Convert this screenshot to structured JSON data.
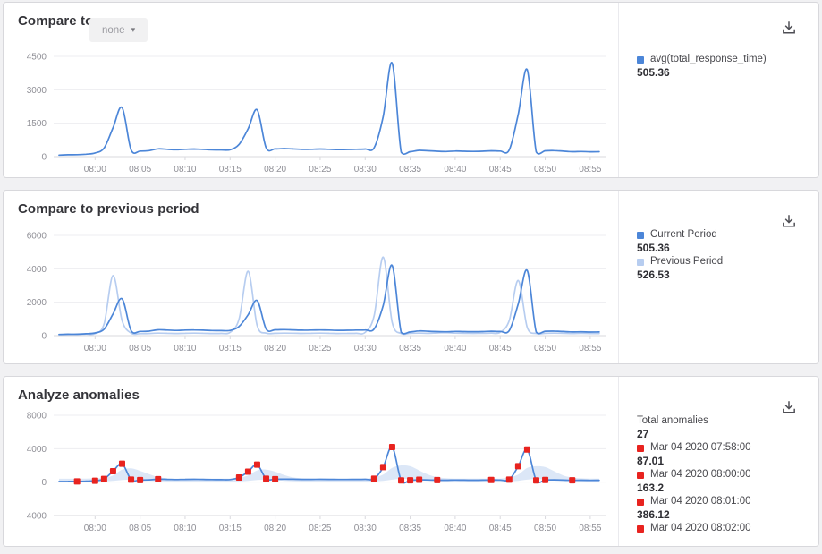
{
  "colors": {
    "accent_blue": "#4c86d8",
    "light_blue": "#b7cdf0",
    "anomaly_red": "#e8231f",
    "band_blue": "#c9daf3",
    "grid": "#ededf0",
    "axis_line": "#d9d9de",
    "axis_text": "#8f8f96",
    "page_bg": "#f1f1f3",
    "panel_bg": "#ffffff",
    "panel_border": "#d8d8dc"
  },
  "panels": [
    {
      "title": "Compare to",
      "dropdown": {
        "selected": "none"
      },
      "legend": [
        {
          "color": "#4c86d8",
          "label": "avg(total_response_time)",
          "value": "505.36"
        }
      ]
    },
    {
      "title": "Compare to previous period",
      "legend": [
        {
          "color": "#4c86d8",
          "label": "Current Period",
          "value": "505.36"
        },
        {
          "color": "#b7cdf0",
          "label": "Previous Period",
          "value": "526.53"
        }
      ]
    },
    {
      "title": "Analyze anomalies",
      "legend": [
        {
          "color": null,
          "label": "Total anomalies",
          "value": "27"
        },
        {
          "color": "#e8231f",
          "label": "Mar 04 2020 07:58:00",
          "value": "87.01"
        },
        {
          "color": "#e8231f",
          "label": "Mar 04 2020 08:00:00",
          "value": "163.2"
        },
        {
          "color": "#e8231f",
          "label": "Mar 04 2020 08:01:00",
          "value": "386.12"
        },
        {
          "color": "#e8231f",
          "label": "Mar 04 2020 08:02:00",
          "value": null
        }
      ]
    }
  ],
  "chart_data": [
    {
      "type": "line",
      "title": "Compare to",
      "xlim": [
        -4.6,
        56.8
      ],
      "ylim": [
        0,
        4500
      ],
      "y_ticks": [
        0,
        1500,
        3000,
        4500
      ],
      "x_tick_minutes": [
        0,
        5,
        10,
        15,
        20,
        25,
        30,
        35,
        40,
        45,
        50,
        55
      ],
      "x_tick_labels": [
        "08:00",
        "08:05",
        "08:10",
        "08:15",
        "08:20",
        "08:25",
        "08:30",
        "08:35",
        "08:40",
        "08:45",
        "08:50",
        "08:55"
      ],
      "x_minutes": [
        -4,
        -3,
        -2,
        -1,
        0,
        1,
        2,
        3,
        4,
        5,
        6,
        7,
        8,
        9,
        10,
        11,
        12,
        13,
        14,
        15,
        16,
        17,
        18,
        19,
        20,
        21,
        22,
        23,
        24,
        25,
        26,
        27,
        28,
        29,
        30,
        31,
        32,
        33,
        34,
        35,
        36,
        37,
        38,
        39,
        40,
        41,
        42,
        43,
        44,
        45,
        46,
        47,
        48,
        49,
        50,
        51,
        52,
        53,
        54,
        55,
        56
      ],
      "series": [
        {
          "name": "avg(total_response_time)",
          "color": "#4c86d8",
          "values": [
            70,
            85,
            87,
            110,
            163,
            386,
            1300,
            2200,
            300,
            250,
            270,
            350,
            330,
            310,
            330,
            340,
            325,
            305,
            300,
            310,
            550,
            1250,
            2100,
            400,
            350,
            360,
            345,
            325,
            330,
            340,
            330,
            315,
            320,
            330,
            340,
            400,
            1800,
            4200,
            200,
            220,
            280,
            260,
            240,
            230,
            250,
            240,
            235,
            240,
            260,
            250,
            300,
            1900,
            3900,
            210,
            260,
            270,
            245,
            220,
            230,
            215,
            220
          ]
        }
      ]
    },
    {
      "type": "line",
      "title": "Compare to previous period",
      "xlim": [
        -4.6,
        56.8
      ],
      "ylim": [
        0,
        6000
      ],
      "y_ticks": [
        0,
        2000,
        4000,
        6000
      ],
      "x_tick_minutes": [
        0,
        5,
        10,
        15,
        20,
        25,
        30,
        35,
        40,
        45,
        50,
        55
      ],
      "x_tick_labels": [
        "08:00",
        "08:05",
        "08:10",
        "08:15",
        "08:20",
        "08:25",
        "08:30",
        "08:35",
        "08:40",
        "08:45",
        "08:50",
        "08:55"
      ],
      "x_minutes": [
        -4,
        -3,
        -2,
        -1,
        0,
        1,
        2,
        3,
        4,
        5,
        6,
        7,
        8,
        9,
        10,
        11,
        12,
        13,
        14,
        15,
        16,
        17,
        18,
        19,
        20,
        21,
        22,
        23,
        24,
        25,
        26,
        27,
        28,
        29,
        30,
        31,
        32,
        33,
        34,
        35,
        36,
        37,
        38,
        39,
        40,
        41,
        42,
        43,
        44,
        45,
        46,
        47,
        48,
        49,
        50,
        51,
        52,
        53,
        54,
        55,
        56
      ],
      "series": [
        {
          "name": "Previous Period",
          "color": "#b7cdf0",
          "values": [
            60,
            70,
            75,
            90,
            120,
            700,
            3600,
            900,
            150,
            120,
            130,
            150,
            140,
            130,
            140,
            150,
            140,
            130,
            135,
            200,
            1000,
            3850,
            600,
            150,
            140,
            150,
            145,
            135,
            140,
            150,
            140,
            130,
            135,
            140,
            200,
            1200,
            4700,
            800,
            130,
            140,
            150,
            140,
            160,
            180,
            150,
            140,
            135,
            140,
            150,
            200,
            900,
            3300,
            500,
            130,
            140,
            150,
            140,
            130,
            140,
            130,
            130
          ]
        },
        {
          "name": "Current Period",
          "color": "#4c86d8",
          "values": [
            70,
            85,
            87,
            110,
            163,
            386,
            1300,
            2200,
            300,
            250,
            270,
            350,
            330,
            310,
            330,
            340,
            325,
            305,
            300,
            310,
            550,
            1250,
            2100,
            400,
            350,
            360,
            345,
            325,
            330,
            340,
            330,
            315,
            320,
            330,
            340,
            400,
            1800,
            4200,
            200,
            220,
            280,
            260,
            240,
            230,
            250,
            240,
            235,
            240,
            260,
            250,
            300,
            1900,
            3900,
            210,
            260,
            270,
            245,
            220,
            230,
            215,
            220
          ]
        }
      ]
    },
    {
      "type": "line",
      "title": "Analyze anomalies",
      "total_anomalies": 27,
      "xlim": [
        -4.6,
        56.8
      ],
      "ylim": [
        -4000,
        8000
      ],
      "y_ticks": [
        -4000,
        0,
        4000,
        8000
      ],
      "x_tick_minutes": [
        0,
        5,
        10,
        15,
        20,
        25,
        30,
        35,
        40,
        45,
        50,
        55
      ],
      "x_tick_labels": [
        "08:00",
        "08:05",
        "08:10",
        "08:15",
        "08:20",
        "08:25",
        "08:30",
        "08:35",
        "08:40",
        "08:45",
        "08:50",
        "08:55"
      ],
      "x_minutes": [
        -4,
        -3,
        -2,
        -1,
        0,
        1,
        2,
        3,
        4,
        5,
        6,
        7,
        8,
        9,
        10,
        11,
        12,
        13,
        14,
        15,
        16,
        17,
        18,
        19,
        20,
        21,
        22,
        23,
        24,
        25,
        26,
        27,
        28,
        29,
        30,
        31,
        32,
        33,
        34,
        35,
        36,
        37,
        38,
        39,
        40,
        41,
        42,
        43,
        44,
        45,
        46,
        47,
        48,
        49,
        50,
        51,
        52,
        53,
        54,
        55,
        56
      ],
      "band": {
        "color": "#c9daf3",
        "lower": [
          60,
          60,
          60,
          60,
          70,
          80,
          150,
          250,
          300,
          250,
          150,
          90,
          70,
          60,
          60,
          60,
          60,
          60,
          60,
          60,
          80,
          150,
          250,
          300,
          250,
          150,
          90,
          70,
          60,
          60,
          60,
          60,
          60,
          60,
          60,
          80,
          150,
          300,
          400,
          350,
          250,
          130,
          80,
          70,
          60,
          60,
          60,
          60,
          60,
          60,
          80,
          150,
          300,
          380,
          330,
          240,
          120,
          80,
          70,
          60,
          60
        ],
        "upper": [
          400,
          400,
          410,
          420,
          450,
          500,
          800,
          1500,
          1650,
          1350,
          950,
          600,
          480,
          430,
          420,
          420,
          420,
          420,
          420,
          430,
          520,
          800,
          1400,
          1500,
          1250,
          850,
          560,
          460,
          420,
          420,
          420,
          420,
          420,
          420,
          430,
          560,
          900,
          1700,
          2000,
          1900,
          1400,
          900,
          600,
          470,
          420,
          420,
          420,
          420,
          420,
          430,
          560,
          900,
          1700,
          1900,
          1800,
          1300,
          800,
          550,
          460,
          430,
          420
        ]
      },
      "series": [
        {
          "name": "Current Period",
          "color": "#4c86d8",
          "values": [
            70,
            85,
            87,
            110,
            163,
            386,
            1300,
            2200,
            300,
            250,
            270,
            350,
            330,
            310,
            330,
            340,
            325,
            305,
            300,
            310,
            550,
            1250,
            2100,
            400,
            350,
            360,
            345,
            325,
            330,
            340,
            330,
            315,
            320,
            330,
            340,
            400,
            1800,
            4200,
            200,
            220,
            280,
            260,
            240,
            230,
            250,
            240,
            235,
            240,
            260,
            250,
            300,
            1900,
            3900,
            210,
            260,
            270,
            245,
            220,
            230,
            215,
            220
          ]
        }
      ],
      "anomaly_color": "#e8231f",
      "anomaly_minutes": [
        -2,
        0,
        1,
        2,
        3,
        4,
        5,
        7,
        16,
        17,
        18,
        19,
        20,
        31,
        32,
        33,
        34,
        35,
        36,
        38,
        44,
        46,
        47,
        48,
        49,
        50,
        53
      ]
    }
  ]
}
